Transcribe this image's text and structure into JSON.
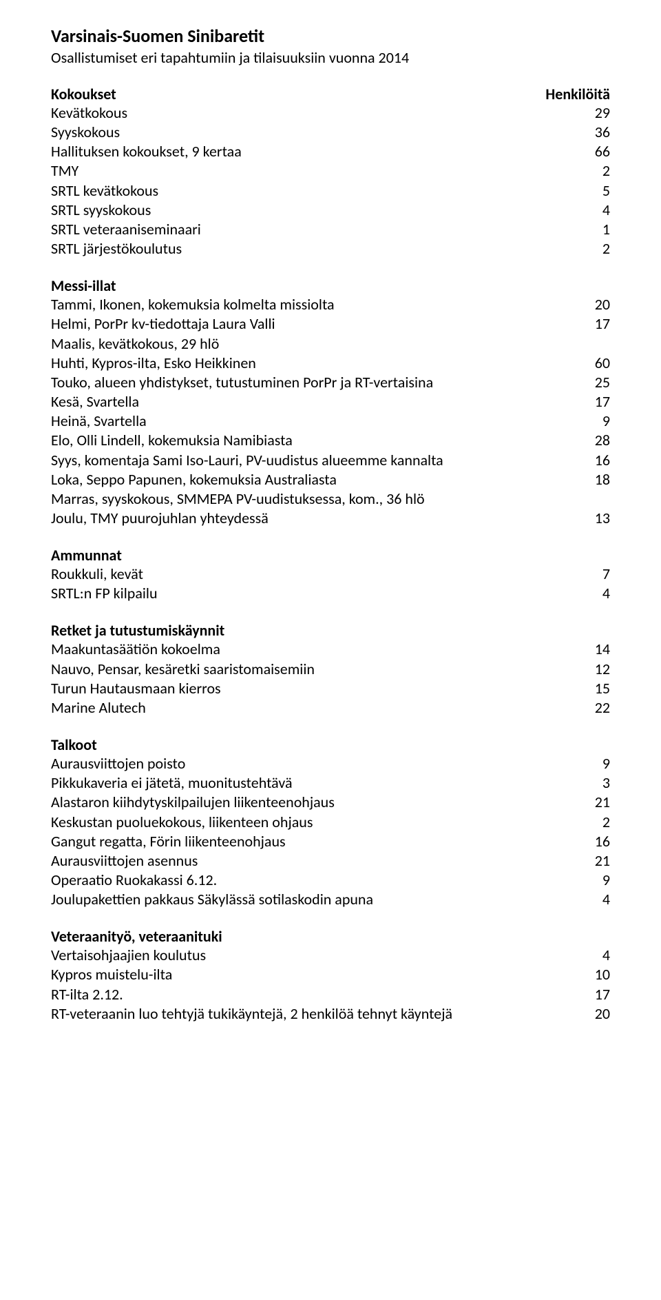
{
  "doc": {
    "title": "Varsinais-Suomen Sinibaretit",
    "subtitle": "Osallistumiset eri tapahtumiin ja tilaisuuksiin vuonna 2014"
  },
  "columnHeader": "Henkilöitä",
  "sections": [
    {
      "heading": "Kokoukset",
      "showHeaderValue": true,
      "items": [
        {
          "label": "Kevätkokous",
          "value": "29"
        },
        {
          "label": "Syyskokous",
          "value": "36"
        },
        {
          "label": "Hallituksen kokoukset, 9 kertaa",
          "value": "66"
        },
        {
          "label": "TMY",
          "value": "2"
        },
        {
          "label": "SRTL kevätkokous",
          "value": "5"
        },
        {
          "label": "SRTL syyskokous",
          "value": "4"
        },
        {
          "label": "SRTL veteraaniseminaari",
          "value": "1"
        },
        {
          "label": "SRTL järjestökoulutus",
          "value": "2"
        }
      ]
    },
    {
      "heading": "Messi-illat",
      "showHeaderValue": false,
      "items": [
        {
          "label": "Tammi,  Ikonen, kokemuksia kolmelta missiolta",
          "value": "20"
        },
        {
          "label": "Helmi, PorPr kv-tiedottaja Laura Valli",
          "value": "17"
        },
        {
          "label": "Maalis, kevätkokous, 29 hlö",
          "value": ""
        },
        {
          "label": "Huhti, Kypros-ilta, Esko Heikkinen",
          "value": "60"
        },
        {
          "label": "Touko, alueen yhdistykset, tutustuminen PorPr ja RT-vertaisina",
          "value": "25"
        },
        {
          "label": "Kesä, Svartella",
          "value": "17"
        },
        {
          "label": "Heinä, Svartella",
          "value": "9"
        },
        {
          "label": "Elo, Olli Lindell, kokemuksia Namibiasta",
          "value": "28"
        },
        {
          "label": "Syys, komentaja Sami Iso-Lauri, PV-uudistus alueemme kannalta",
          "value": "16"
        },
        {
          "label": "Loka, Seppo Papunen, kokemuksia Australiasta",
          "value": "18"
        },
        {
          "label": "Marras, syyskokous, SMMEPA PV-uudistuksessa, kom., 36 hlö",
          "value": ""
        },
        {
          "label": "Joulu, TMY puurojuhlan yhteydessä",
          "value": "13"
        }
      ]
    },
    {
      "heading": "Ammunnat",
      "showHeaderValue": false,
      "items": [
        {
          "label": "Roukkuli, kevät",
          "value": "7"
        },
        {
          "label": "SRTL:n FP kilpailu",
          "value": "4"
        }
      ]
    },
    {
      "heading": "Retket ja tutustumiskäynnit",
      "showHeaderValue": false,
      "items": [
        {
          "label": "Maakuntasäätiön kokoelma",
          "value": "14"
        },
        {
          "label": "Nauvo, Pensar, kesäretki saaristomaisemiin",
          "value": "12"
        },
        {
          "label": "Turun Hautausmaan kierros",
          "value": "15"
        },
        {
          "label": "Marine Alutech",
          "value": "22"
        }
      ]
    },
    {
      "heading": "Talkoot",
      "showHeaderValue": false,
      "items": [
        {
          "label": "Aurausviittojen poisto",
          "value": "9"
        },
        {
          "label": "Pikkukaveria ei jätetä, muonitustehtävä",
          "value": "3"
        },
        {
          "label": "Alastaron kiihdytyskilpailujen liikenteenohjaus",
          "value": "21"
        },
        {
          "label": "Keskustan puoluekokous, liikenteen ohjaus",
          "value": "2"
        },
        {
          "label": "Gangut regatta, Förin liikenteenohjaus",
          "value": "16"
        },
        {
          "label": "Aurausviittojen asennus",
          "value": "21"
        },
        {
          "label": "Operaatio Ruokakassi 6.12.",
          "value": "9"
        },
        {
          "label": "Joulupakettien pakkaus Säkylässä sotilaskodin apuna",
          "value": "4"
        }
      ]
    },
    {
      "heading": "Veteraanityö, veteraanituki",
      "showHeaderValue": false,
      "items": [
        {
          "label": "Vertaisohjaajien koulutus",
          "value": "4"
        },
        {
          "label": "Kypros muistelu-ilta",
          "value": "10"
        },
        {
          "label": "RT-ilta 2.12.",
          "value": "17"
        },
        {
          "label": "RT-veteraanin luo tehtyjä tukikäyntejä, 2 henkilöä tehnyt käyntejä",
          "value": "20"
        }
      ]
    }
  ]
}
